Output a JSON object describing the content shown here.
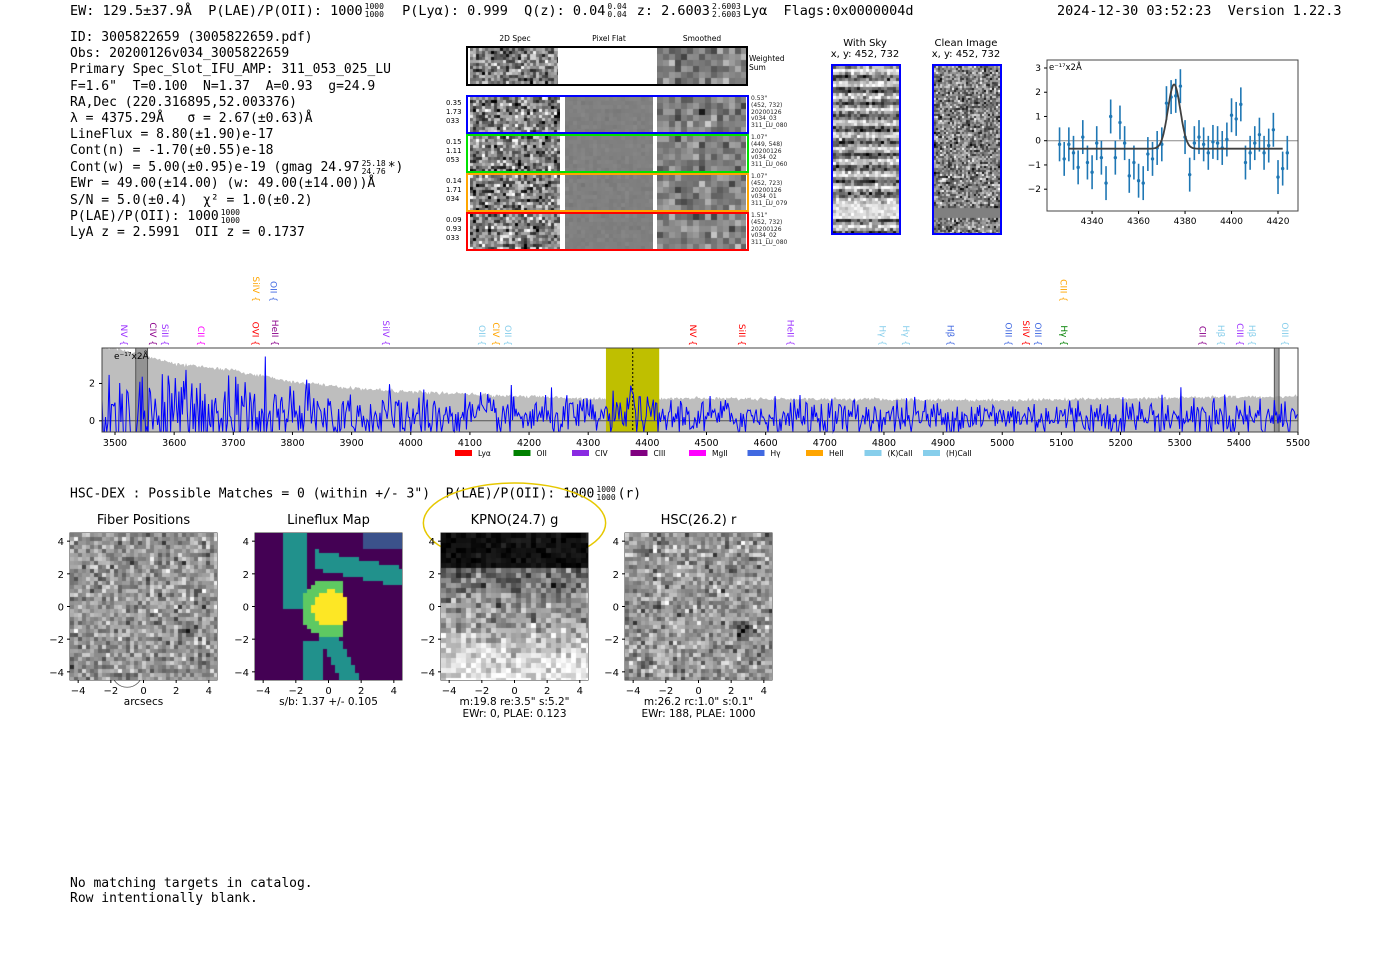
{
  "header": {
    "ew": "EW: 129.5±37.9Å",
    "plae": "P(LAE)/P(OII): 1000",
    "plae_hi": "1000",
    "plae_lo": "1000",
    "plya": "P(Lyα): 0.999",
    "qz": "Q(z): 0.04",
    "qz_hi": "0.04",
    "qz_lo": "0.04",
    "z": "z: 2.6003",
    "z_hi": "2.6003",
    "z_lo": "2.6003",
    "z_line": "Lyα",
    "flags": "Flags:0x0000004d",
    "timestamp": "2024-12-30 03:52:23",
    "version": "Version 1.22.3"
  },
  "info": {
    "id": "ID: 3005822659 (3005822659.pdf)",
    "obs": "Obs: 20200126v034_3005822659",
    "primary": "Primary Spec_Slot_IFU_AMP: 311_053_025_LU",
    "params": "F=1.6\"  T=0.100  N=1.37  A=0.93  g=24.9",
    "radec": "RA,Dec (220.316895,52.003376)",
    "lambda": "λ = 4375.29Å   σ = 2.67(±0.63)Å",
    "lineflux": "LineFlux = 8.80(±1.90)e-17",
    "cont_n": "Cont(n) = -1.70(±0.55)e-18",
    "cont_w": "Cont(w) = 5.00(±0.95)e-19 (gmag 24.97",
    "cont_w_hi": "25.18",
    "cont_w_lo": "24.76",
    "cont_w_end": "*)",
    "ewr": "EWr = 49.00(±14.00) (w: 49.00(±14.00))Å",
    "sn": "S/N = 5.0(±0.4)  χ² = 1.0(±0.2)",
    "plae": "P(LAE)/P(OII): 1000",
    "plae_hi": "1000",
    "plae_lo": "1000",
    "z": "LyA z = 2.5991  OII z = 0.1737"
  },
  "spec2d": {
    "titles": [
      "2D Spec",
      "Pixel Flat",
      "Smoothed"
    ],
    "weighted_label": "Weighted Sum",
    "rows": [
      {
        "color": "#0000ff",
        "left": [
          "0.35",
          "1.73",
          "033"
        ],
        "right": [
          "0.53\"",
          "(452, 732)",
          "20200126",
          "v034_03",
          "311_LU_080"
        ]
      },
      {
        "color": "#00e000",
        "left": [
          "0.15",
          "1.11",
          "053"
        ],
        "right": [
          "1.07\"",
          "(449, 548)",
          "20200126",
          "v034_02",
          "311_LU_060"
        ]
      },
      {
        "color": "#ffa500",
        "left": [
          "0.14",
          "1.71",
          "034"
        ],
        "right": [
          "1.07\"",
          "(452, 723)",
          "20200126",
          "v034_01",
          "311_LU_079"
        ]
      },
      {
        "color": "#ff0000",
        "left": [
          "0.09",
          "0.93",
          "033"
        ],
        "right": [
          "1.51\"",
          "(452, 732)",
          "20200126",
          "v034_02",
          "311_LU_080"
        ]
      }
    ]
  },
  "fiber_cutouts": [
    {
      "title": "With Sky",
      "coords": "x, y: 452, 732"
    },
    {
      "title": "Clean Image",
      "coords": "x, y: 452, 732"
    }
  ],
  "chart_data": [
    {
      "type": "scatter",
      "title": "",
      "ylabel": "e⁻¹⁷x2Å",
      "xlim": [
        4320.6,
        4428.6
      ],
      "ylim": [
        -2.9,
        3.33
      ],
      "xticks": [
        4340,
        4360,
        4380,
        4400,
        4420
      ],
      "yticks": [
        -2,
        -1,
        0,
        1,
        2,
        3
      ],
      "x": [
        4326,
        4328,
        4330,
        4332,
        4334,
        4336,
        4338,
        4340,
        4342,
        4344,
        4346,
        4348,
        4350,
        4352,
        4354,
        4356,
        4358,
        4360,
        4362,
        4364,
        4366,
        4368,
        4370,
        4372,
        4374,
        4376,
        4378,
        4380,
        4382,
        4384,
        4386,
        4388,
        4390,
        4392,
        4394,
        4396,
        4398,
        4400,
        4402,
        4404,
        4406,
        4408,
        4410,
        4412,
        4414,
        4416,
        4418,
        4420,
        4422,
        4424
      ],
      "y": [
        -0.15,
        -0.75,
        -0.15,
        -0.5,
        -1.1,
        0.15,
        -0.9,
        -1.3,
        -0.1,
        -0.7,
        -1.75,
        1.0,
        -0.7,
        0.75,
        -0.1,
        -1.45,
        -0.9,
        -1.65,
        -1.75,
        -0.55,
        -0.75,
        -0.3,
        -0.15,
        1.55,
        1.8,
        1.85,
        2.25,
        0.15,
        -1.4,
        -0.1,
        0.15,
        -0.15,
        -0.5,
        -0.05,
        -0.1,
        -0.3,
        0.05,
        1.05,
        0.9,
        1.5,
        -0.9,
        -0.5,
        -0.1,
        0.25,
        -0.5,
        -0.2,
        0.45,
        -1.5,
        -1.15,
        -0.5
      ],
      "yerr": 0.7,
      "model": {
        "type": "gaussian",
        "center": 4375.29,
        "sigma": 2.67,
        "amplitude": 2.65,
        "continuum": -0.33,
        "range": [
          4330,
          4422
        ]
      },
      "colors": {
        "points": "#1f77b4",
        "model": "#404040"
      }
    },
    {
      "type": "line",
      "ylabel": "e⁻¹⁷x2Å",
      "xlim": [
        3478,
        5500
      ],
      "ylim": [
        -0.6,
        3.9
      ],
      "xticks": [
        3500,
        3600,
        3700,
        3800,
        3900,
        4000,
        4100,
        4200,
        4300,
        4400,
        4500,
        4600,
        4700,
        4800,
        4900,
        5000,
        5100,
        5200,
        5300,
        5400,
        5500
      ],
      "yticks": [
        0,
        2
      ],
      "error_envelope": [
        [
          3478,
          3.9
        ],
        [
          3500,
          3.9
        ],
        [
          3560,
          3.4
        ],
        [
          3600,
          3.05
        ],
        [
          3700,
          2.7
        ],
        [
          3800,
          2.1
        ],
        [
          3900,
          1.75
        ],
        [
          4000,
          1.55
        ],
        [
          4200,
          1.3
        ],
        [
          4300,
          1.2
        ],
        [
          4500,
          1.2
        ],
        [
          4800,
          1.15
        ],
        [
          5000,
          1.1
        ],
        [
          5300,
          1.25
        ],
        [
          5500,
          1.3
        ]
      ],
      "emission_peak": {
        "wavelength": 4375.29,
        "value": 1.9
      },
      "highlight": {
        "range": [
          4330,
          4420
        ],
        "color": "#bfbf00",
        "marker": 4375.29
      },
      "masked": [
        [
          3535,
          3555
        ],
        [
          5460,
          5468
        ]
      ],
      "line_labels": [
        {
          "name": "NV",
          "wave": 3505,
          "color": "#9b30ff",
          "tier": 0
        },
        {
          "name": "CIV",
          "wave": 3554,
          "color": "#8b008b",
          "tier": 0
        },
        {
          "name": "SiII",
          "wave": 3568,
          "color": "#9b30ff",
          "tier": 0
        },
        {
          "name": "CII",
          "wave": 3635,
          "color": "#ff00ff",
          "tier": 0
        },
        {
          "name": "OVI",
          "wave": 3727,
          "color": "#ff0000",
          "tier": 0
        },
        {
          "name": "HeII",
          "wave": 3760,
          "color": "#8b008b",
          "tier": 0
        },
        {
          "name": "SiIV",
          "wave": 3948,
          "color": "#9b30ff",
          "tier": 0
        },
        {
          "name": "OII",
          "wave": 4110,
          "color": "#87ceeb",
          "tier": 0
        },
        {
          "name": "CIV",
          "wave": 4134,
          "color": "#ffa500",
          "tier": 0
        },
        {
          "name": "OII",
          "wave": 4146,
          "color": "#87ceeb",
          "tier": 0
        },
        {
          "name": "NV",
          "wave": 4467,
          "color": "#ff0000",
          "tier": 0
        },
        {
          "name": "SiII",
          "wave": 4550,
          "color": "#ff0000",
          "tier": 0
        },
        {
          "name": "HeII",
          "wave": 4632,
          "color": "#9b30ff",
          "tier": 0
        },
        {
          "name": "Hγ",
          "wave": 4787,
          "color": "#87ceeb",
          "tier": 0
        },
        {
          "name": "Hγ",
          "wave": 4827,
          "color": "#87ceeb",
          "tier": 0
        },
        {
          "name": "Hβ",
          "wave": 4902,
          "color": "#4169e1",
          "tier": 0
        },
        {
          "name": "OIII",
          "wave": 5000,
          "color": "#4169e1",
          "tier": 0
        },
        {
          "name": "SiIV",
          "wave": 5030,
          "color": "#ff0000",
          "tier": 0
        },
        {
          "name": "OIII",
          "wave": 5047,
          "color": "#4169e1",
          "tier": 0
        },
        {
          "name": "Hγ",
          "wave": 5094,
          "color": "#008000",
          "tier": 0
        },
        {
          "name": "CII",
          "wave": 5328,
          "color": "#8b008b",
          "tier": 0
        },
        {
          "name": "Hβ",
          "wave": 5360,
          "color": "#87ceeb",
          "tier": 0
        },
        {
          "name": "CIII",
          "wave": 5392,
          "color": "#9b30ff",
          "tier": 0
        },
        {
          "name": "Hβ",
          "wave": 5409,
          "color": "#87ceeb",
          "tier": 0
        },
        {
          "name": "OIII",
          "wave": 5468,
          "color": "#87ceeb",
          "tier": 0
        },
        {
          "name": "SiIV",
          "wave": 3728,
          "color": "#ffa500",
          "tier": 1
        },
        {
          "name": "OII",
          "wave": 3758,
          "color": "#4169e1",
          "tier": 1
        },
        {
          "name": "CIII",
          "wave": 5093,
          "color": "#ffa500",
          "tier": 1
        }
      ],
      "legend": [
        {
          "label": "Lyα",
          "color": "#ff0000"
        },
        {
          "label": "OII",
          "color": "#008000"
        },
        {
          "label": "CIV",
          "color": "#8a2be2"
        },
        {
          "label": "CIII",
          "color": "#800080"
        },
        {
          "label": "MgII",
          "color": "#ff00ff"
        },
        {
          "label": "Hγ",
          "color": "#4169e1"
        },
        {
          "label": "HeII",
          "color": "#ffa500"
        },
        {
          "label": "(K)CaII",
          "color": "#87ceeb"
        },
        {
          "label": "(H)CaII",
          "color": "#87ceeb"
        }
      ],
      "legend_position": "bottom",
      "colors": {
        "flux": "#0000ff",
        "error": "#bebebe"
      }
    }
  ],
  "hsc": {
    "line": "HSC-DEX : Possible Matches = 0 (within +/- 3\")  P(LAE)/P(OII): 1000",
    "hi": "1000",
    "lo": "1000",
    "band": "(r)"
  },
  "cutouts": [
    {
      "title": "Fiber Positions",
      "captions": [
        "arcsecs"
      ],
      "kind": "fibers"
    },
    {
      "title": "Lineflux Map",
      "captions": [
        "s/b: 1.37 +/- 0.105"
      ],
      "kind": "lineflux"
    },
    {
      "title": "KPNO(24.7) g",
      "captions": [
        "m:19.8  re:3.5\"  s:5.2\"",
        "EWr: 0, PLAE: 0.123"
      ],
      "kind": "kpno"
    },
    {
      "title": "HSC(26.2) r",
      "captions": [
        "m:26.2 rc:1.0\"  s:0.1\"",
        "EWr: 188, PLAE: 1000"
      ],
      "kind": "hsc"
    }
  ],
  "cutout_axes": {
    "ticks": [
      -4,
      -2,
      0,
      2,
      4
    ],
    "north": "N",
    "east": "E"
  },
  "footer": [
    "No matching targets in catalog.",
    "Row intentionally blank."
  ]
}
